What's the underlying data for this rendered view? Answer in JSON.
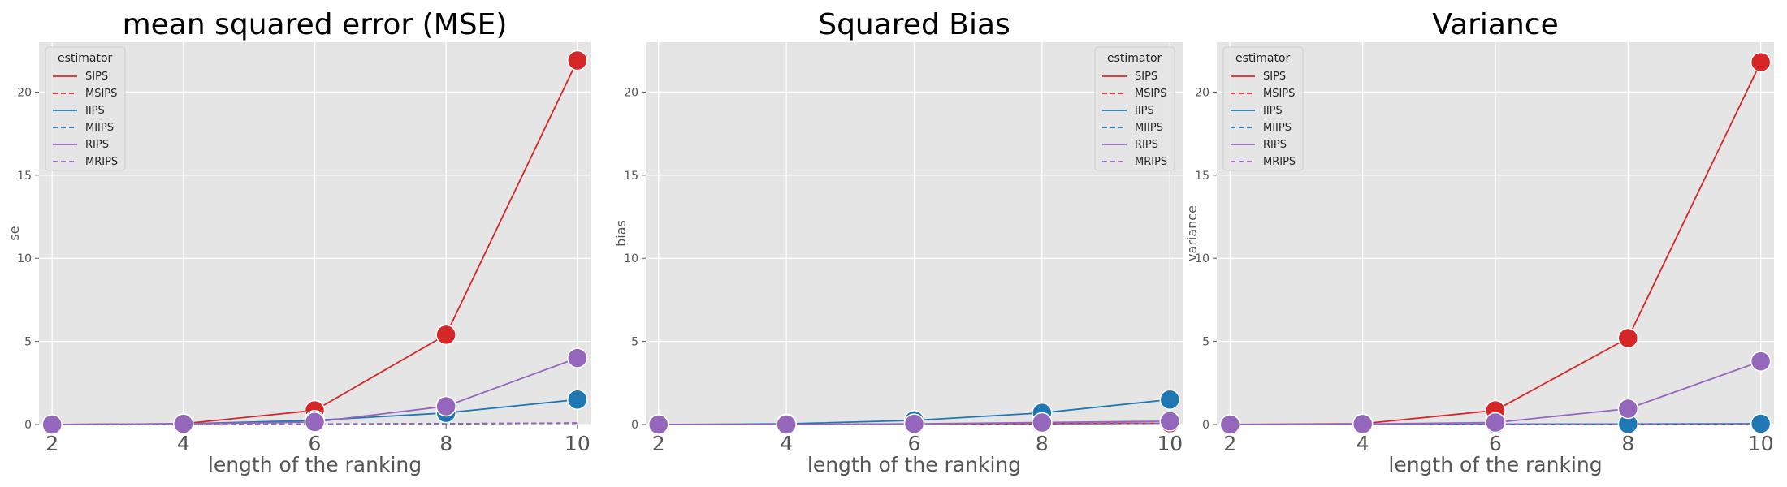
{
  "chart_data": [
    {
      "type": "line",
      "title": "mean squared error (MSE)",
      "xlabel": "length of the ranking",
      "ylabel": "se",
      "x": [
        2,
        4,
        6,
        8,
        10
      ],
      "xlim": [
        1.8,
        10.2
      ],
      "ylim": [
        0,
        23
      ],
      "xticks": [
        2,
        4,
        6,
        8,
        10
      ],
      "yticks": [
        0,
        5,
        10,
        15,
        20
      ],
      "grid": true,
      "legend": {
        "title": "estimator",
        "placement": "top-left"
      },
      "series": [
        {
          "name": "SIPS",
          "color": "#d62728",
          "dashed": false,
          "values": [
            0.0,
            0.05,
            0.85,
            5.4,
            21.9
          ]
        },
        {
          "name": "MSIPS",
          "color": "#d62728",
          "dashed": true,
          "values": [
            0.0,
            0.0,
            0.02,
            0.05,
            0.08
          ]
        },
        {
          "name": "IIPS",
          "color": "#1f77b4",
          "dashed": false,
          "values": [
            0.0,
            0.04,
            0.25,
            0.7,
            1.5
          ]
        },
        {
          "name": "MIIPS",
          "color": "#1f77b4",
          "dashed": true,
          "values": [
            0.0,
            0.0,
            0.03,
            0.05,
            0.08
          ]
        },
        {
          "name": "RIPS",
          "color": "#9467bd",
          "dashed": false,
          "values": [
            0.0,
            0.04,
            0.15,
            1.1,
            4.0
          ]
        },
        {
          "name": "MRIPS",
          "color": "#9467bd",
          "dashed": true,
          "values": [
            0.0,
            0.0,
            0.02,
            0.04,
            0.1
          ]
        }
      ]
    },
    {
      "type": "line",
      "title": "Squared Bias",
      "xlabel": "length of the ranking",
      "ylabel": "bias",
      "x": [
        2,
        4,
        6,
        8,
        10
      ],
      "xlim": [
        1.8,
        10.2
      ],
      "ylim": [
        0,
        23
      ],
      "xticks": [
        2,
        4,
        6,
        8,
        10
      ],
      "yticks": [
        0,
        5,
        10,
        15,
        20
      ],
      "grid": true,
      "legend": {
        "title": "estimator",
        "placement": "top-right"
      },
      "series": [
        {
          "name": "SIPS",
          "color": "#d62728",
          "dashed": false,
          "values": [
            0.0,
            0.0,
            0.02,
            0.05,
            0.08
          ]
        },
        {
          "name": "MSIPS",
          "color": "#d62728",
          "dashed": true,
          "values": [
            0.0,
            0.0,
            0.02,
            0.05,
            0.08
          ]
        },
        {
          "name": "IIPS",
          "color": "#1f77b4",
          "dashed": false,
          "values": [
            0.0,
            0.04,
            0.25,
            0.7,
            1.5
          ]
        },
        {
          "name": "MIIPS",
          "color": "#1f77b4",
          "dashed": true,
          "values": [
            0.0,
            0.0,
            0.02,
            0.05,
            0.08
          ]
        },
        {
          "name": "RIPS",
          "color": "#9467bd",
          "dashed": false,
          "values": [
            0.0,
            0.0,
            0.04,
            0.12,
            0.2
          ]
        },
        {
          "name": "MRIPS",
          "color": "#9467bd",
          "dashed": true,
          "values": [
            0.0,
            0.0,
            0.02,
            0.05,
            0.08
          ]
        }
      ]
    },
    {
      "type": "line",
      "title": "Variance",
      "xlabel": "length of the ranking",
      "ylabel": "variance",
      "x": [
        2,
        4,
        6,
        8,
        10
      ],
      "xlim": [
        1.8,
        10.2
      ],
      "ylim": [
        0,
        23
      ],
      "xticks": [
        2,
        4,
        6,
        8,
        10
      ],
      "yticks": [
        0,
        5,
        10,
        15,
        20
      ],
      "grid": true,
      "legend": {
        "title": "estimator",
        "placement": "top-left"
      },
      "series": [
        {
          "name": "SIPS",
          "color": "#d62728",
          "dashed": false,
          "values": [
            0.0,
            0.05,
            0.85,
            5.2,
            21.8
          ]
        },
        {
          "name": "MSIPS",
          "color": "#d62728",
          "dashed": true,
          "values": [
            0.0,
            0.0,
            0.01,
            0.02,
            0.03
          ]
        },
        {
          "name": "IIPS",
          "color": "#1f77b4",
          "dashed": false,
          "values": [
            0.0,
            0.0,
            0.02,
            0.03,
            0.05
          ]
        },
        {
          "name": "MIIPS",
          "color": "#1f77b4",
          "dashed": true,
          "values": [
            0.0,
            0.0,
            0.01,
            0.02,
            0.03
          ]
        },
        {
          "name": "RIPS",
          "color": "#9467bd",
          "dashed": false,
          "values": [
            0.0,
            0.03,
            0.12,
            0.95,
            3.8
          ]
        },
        {
          "name": "MRIPS",
          "color": "#9467bd",
          "dashed": true,
          "values": [
            0.0,
            0.0,
            0.01,
            0.02,
            0.03
          ]
        }
      ]
    }
  ]
}
